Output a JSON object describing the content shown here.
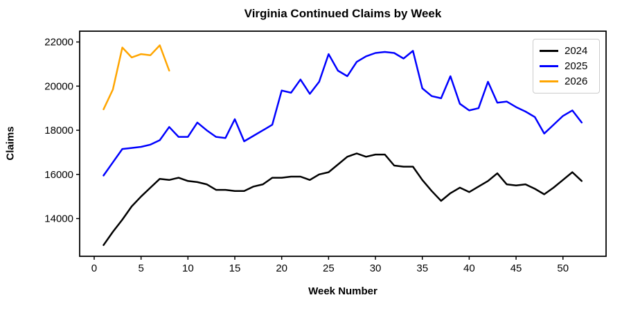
{
  "chart_data": {
    "type": "line",
    "title": "Virginia Continued Claims by Week",
    "xlabel": "Week Number",
    "ylabel": "Claims",
    "grid": false,
    "legend_position": "upper right",
    "xlim": [
      -1.55,
      54.6
    ],
    "ylim": [
      12290,
      22490
    ],
    "x_ticks": [
      0,
      5,
      10,
      15,
      20,
      25,
      30,
      35,
      40,
      45,
      50
    ],
    "y_ticks": [
      14000,
      16000,
      18000,
      20000,
      22000
    ],
    "series": [
      {
        "name": "2024",
        "color": "#000000",
        "x": [
          1,
          2,
          3,
          4,
          5,
          6,
          7,
          8,
          9,
          10,
          11,
          12,
          13,
          14,
          15,
          16,
          17,
          18,
          19,
          20,
          21,
          22,
          23,
          24,
          25,
          26,
          27,
          28,
          29,
          30,
          31,
          32,
          33,
          34,
          35,
          36,
          37,
          38,
          39,
          40,
          41,
          42,
          43,
          44,
          45,
          46,
          47,
          48,
          49,
          50,
          51,
          52
        ],
        "values": [
          12800,
          13400,
          13950,
          14550,
          15000,
          15400,
          15800,
          15750,
          15850,
          15700,
          15650,
          15550,
          15300,
          15300,
          15250,
          15250,
          15450,
          15550,
          15850,
          15850,
          15900,
          15900,
          15750,
          16000,
          16100,
          16450,
          16800,
          16950,
          16800,
          16900,
          16900,
          16400,
          16350,
          16350,
          15750,
          15250,
          14800,
          15150,
          15400,
          15200,
          15450,
          15700,
          16050,
          15550,
          15500,
          15550,
          15350,
          15100,
          15400,
          15750,
          16100,
          15700
        ]
      },
      {
        "name": "2025",
        "color": "#0000ff",
        "x": [
          1,
          2,
          3,
          4,
          5,
          6,
          7,
          8,
          9,
          10,
          11,
          12,
          13,
          14,
          15,
          16,
          17,
          18,
          19,
          20,
          21,
          22,
          23,
          24,
          25,
          26,
          27,
          28,
          29,
          30,
          31,
          32,
          33,
          34,
          35,
          36,
          37,
          38,
          39,
          40,
          41,
          42,
          43,
          44,
          45,
          46,
          47,
          48,
          49,
          50,
          51,
          52
        ],
        "values": [
          15950,
          16550,
          17150,
          17200,
          17250,
          17350,
          17550,
          18150,
          17700,
          17700,
          18350,
          18000,
          17700,
          17650,
          18500,
          17500,
          17750,
          18000,
          18250,
          19800,
          19700,
          20300,
          19650,
          20200,
          21450,
          20700,
          20450,
          21100,
          21350,
          21500,
          21550,
          21500,
          21250,
          21600,
          19900,
          19550,
          19450,
          20450,
          19200,
          18900,
          19000,
          20200,
          19250,
          19300,
          19050,
          18850,
          18600,
          17850,
          18250,
          18650,
          18900,
          18350
        ]
      },
      {
        "name": "2026",
        "color": "#ffa500",
        "x": [
          1,
          2,
          3,
          4,
          5,
          6,
          7,
          8
        ],
        "values": [
          18950,
          19850,
          21750,
          21300,
          21450,
          21400,
          21850,
          20700
        ]
      }
    ]
  }
}
